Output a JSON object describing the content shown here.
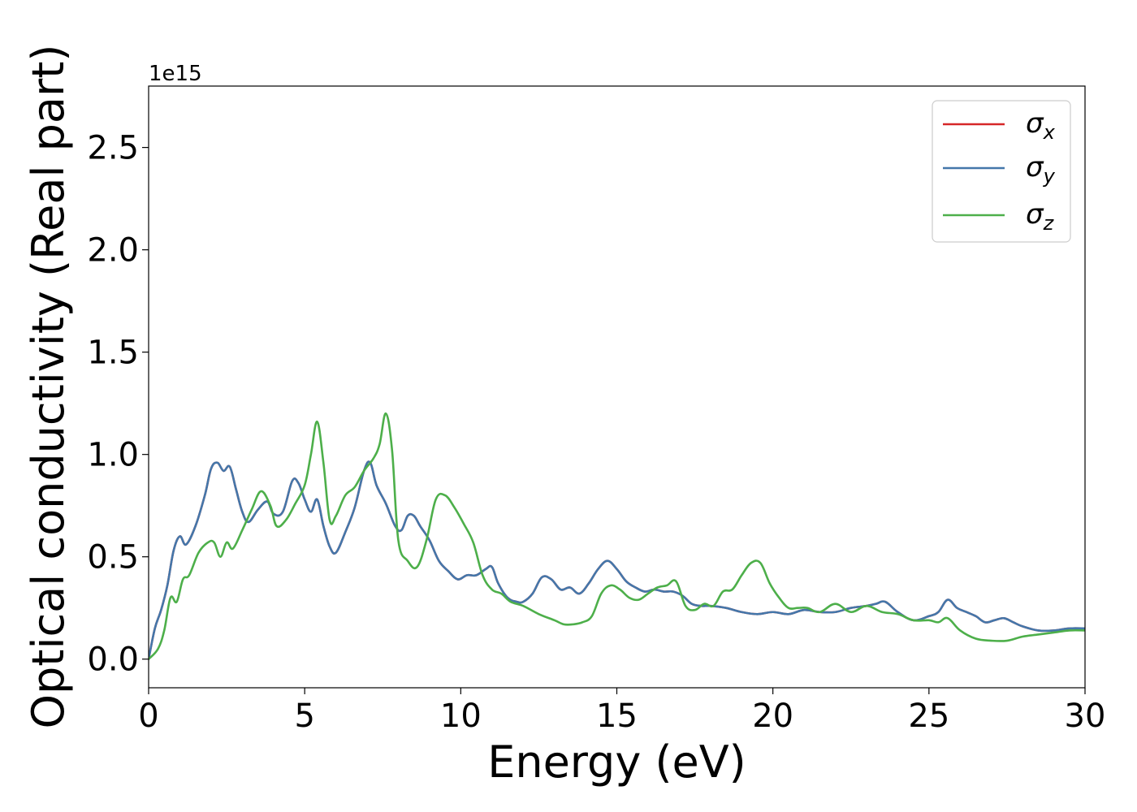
{
  "chart_data": {
    "type": "line",
    "xlabel": "Energy (eV)",
    "ylabel": "Optical conductivity (Real part)",
    "offset_text": "1e15",
    "xlim": [
      0,
      30
    ],
    "ylim": [
      -0.14,
      2.8
    ],
    "xticks": [
      0,
      5,
      10,
      15,
      20,
      25,
      30
    ],
    "xtick_labels": [
      "0",
      "5",
      "10",
      "15",
      "20",
      "25",
      "30"
    ],
    "yticks": [
      0.0,
      0.5,
      1.0,
      1.5,
      2.0,
      2.5
    ],
    "ytick_labels": [
      "0.0",
      "0.5",
      "1.0",
      "1.5",
      "2.0",
      "2.5"
    ],
    "grid": false,
    "legend_position": "top-right",
    "series": [
      {
        "name": "σ_x",
        "label_main": "σ",
        "label_sub": "x",
        "color": "#d62728",
        "x": [
          0,
          0.2,
          0.4,
          0.6,
          0.8,
          1.0,
          1.2,
          1.5,
          1.8,
          2.0,
          2.2,
          2.4,
          2.6,
          2.8,
          3.0,
          3.2,
          3.5,
          3.8,
          4.0,
          4.3,
          4.6,
          4.8,
          5.0,
          5.2,
          5.4,
          5.6,
          5.8,
          6.0,
          6.3,
          6.6,
          6.9,
          7.1,
          7.3,
          7.6,
          7.9,
          8.1,
          8.3,
          8.5,
          8.7,
          9.0,
          9.3,
          9.6,
          9.9,
          10.2,
          10.5,
          10.8,
          11.0,
          11.2,
          11.5,
          11.8,
          12.0,
          12.3,
          12.6,
          12.9,
          13.2,
          13.5,
          13.8,
          14.1,
          14.4,
          14.7,
          15.0,
          15.3,
          15.6,
          15.9,
          16.2,
          16.5,
          16.8,
          17.1,
          17.4,
          17.7,
          18.0,
          18.5,
          19.0,
          19.5,
          20.0,
          20.5,
          21.0,
          21.5,
          22.0,
          22.5,
          23.0,
          23.3,
          23.6,
          24.0,
          24.5,
          25.0,
          25.3,
          25.6,
          25.9,
          26.2,
          26.5,
          26.8,
          27.1,
          27.4,
          27.7,
          28.0,
          28.5,
          29.0,
          29.5,
          30.0
        ],
        "y": [
          0.0,
          0.15,
          0.24,
          0.36,
          0.53,
          0.6,
          0.56,
          0.65,
          0.8,
          0.93,
          0.96,
          0.92,
          0.94,
          0.83,
          0.72,
          0.67,
          0.73,
          0.77,
          0.71,
          0.72,
          0.87,
          0.86,
          0.78,
          0.72,
          0.78,
          0.65,
          0.55,
          0.52,
          0.62,
          0.74,
          0.92,
          0.96,
          0.85,
          0.76,
          0.65,
          0.63,
          0.7,
          0.7,
          0.65,
          0.58,
          0.48,
          0.43,
          0.39,
          0.41,
          0.41,
          0.44,
          0.45,
          0.37,
          0.3,
          0.28,
          0.28,
          0.32,
          0.4,
          0.39,
          0.34,
          0.35,
          0.32,
          0.37,
          0.44,
          0.48,
          0.44,
          0.38,
          0.35,
          0.33,
          0.34,
          0.33,
          0.33,
          0.31,
          0.27,
          0.26,
          0.26,
          0.25,
          0.23,
          0.22,
          0.23,
          0.22,
          0.24,
          0.23,
          0.23,
          0.25,
          0.26,
          0.27,
          0.28,
          0.23,
          0.19,
          0.21,
          0.23,
          0.29,
          0.25,
          0.23,
          0.21,
          0.18,
          0.19,
          0.2,
          0.18,
          0.16,
          0.14,
          0.14,
          0.15,
          0.15
        ]
      },
      {
        "name": "σ_y",
        "label_main": "σ",
        "label_sub": "y",
        "color": "#4477aa",
        "x": [
          0,
          0.2,
          0.4,
          0.6,
          0.8,
          1.0,
          1.2,
          1.5,
          1.8,
          2.0,
          2.2,
          2.4,
          2.6,
          2.8,
          3.0,
          3.2,
          3.5,
          3.8,
          4.0,
          4.3,
          4.6,
          4.8,
          5.0,
          5.2,
          5.4,
          5.6,
          5.8,
          6.0,
          6.3,
          6.6,
          6.9,
          7.1,
          7.3,
          7.6,
          7.9,
          8.1,
          8.3,
          8.5,
          8.7,
          9.0,
          9.3,
          9.6,
          9.9,
          10.2,
          10.5,
          10.8,
          11.0,
          11.2,
          11.5,
          11.8,
          12.0,
          12.3,
          12.6,
          12.9,
          13.2,
          13.5,
          13.8,
          14.1,
          14.4,
          14.7,
          15.0,
          15.3,
          15.6,
          15.9,
          16.2,
          16.5,
          16.8,
          17.1,
          17.4,
          17.7,
          18.0,
          18.5,
          19.0,
          19.5,
          20.0,
          20.5,
          21.0,
          21.5,
          22.0,
          22.5,
          23.0,
          23.3,
          23.6,
          24.0,
          24.5,
          25.0,
          25.3,
          25.6,
          25.9,
          26.2,
          26.5,
          26.8,
          27.1,
          27.4,
          27.7,
          28.0,
          28.5,
          29.0,
          29.5,
          30.0
        ],
        "y": [
          0.0,
          0.15,
          0.24,
          0.36,
          0.53,
          0.6,
          0.56,
          0.65,
          0.8,
          0.93,
          0.96,
          0.92,
          0.94,
          0.83,
          0.72,
          0.67,
          0.73,
          0.77,
          0.71,
          0.72,
          0.87,
          0.86,
          0.78,
          0.72,
          0.78,
          0.65,
          0.55,
          0.52,
          0.62,
          0.74,
          0.92,
          0.96,
          0.85,
          0.76,
          0.65,
          0.63,
          0.7,
          0.7,
          0.65,
          0.58,
          0.48,
          0.43,
          0.39,
          0.41,
          0.41,
          0.44,
          0.45,
          0.37,
          0.3,
          0.28,
          0.28,
          0.32,
          0.4,
          0.39,
          0.34,
          0.35,
          0.32,
          0.37,
          0.44,
          0.48,
          0.44,
          0.38,
          0.35,
          0.33,
          0.34,
          0.33,
          0.33,
          0.31,
          0.27,
          0.26,
          0.26,
          0.25,
          0.23,
          0.22,
          0.23,
          0.22,
          0.24,
          0.23,
          0.23,
          0.25,
          0.26,
          0.27,
          0.28,
          0.23,
          0.19,
          0.21,
          0.23,
          0.29,
          0.25,
          0.23,
          0.21,
          0.18,
          0.19,
          0.2,
          0.18,
          0.16,
          0.14,
          0.14,
          0.15,
          0.15
        ]
      },
      {
        "name": "σ_z",
        "label_main": "σ",
        "label_sub": "z",
        "color": "#4daf4a",
        "x": [
          0,
          0.3,
          0.5,
          0.7,
          0.9,
          1.1,
          1.3,
          1.6,
          1.9,
          2.1,
          2.3,
          2.5,
          2.7,
          3.0,
          3.3,
          3.6,
          3.9,
          4.1,
          4.4,
          4.7,
          5.0,
          5.2,
          5.4,
          5.6,
          5.8,
          6.0,
          6.3,
          6.6,
          6.9,
          7.2,
          7.4,
          7.6,
          7.8,
          8.0,
          8.3,
          8.6,
          8.9,
          9.2,
          9.5,
          9.8,
          10.1,
          10.4,
          10.7,
          11.0,
          11.3,
          11.6,
          12.0,
          12.5,
          13.0,
          13.3,
          13.6,
          13.9,
          14.2,
          14.5,
          14.8,
          15.1,
          15.4,
          15.7,
          16.0,
          16.3,
          16.6,
          16.9,
          17.2,
          17.5,
          17.8,
          18.1,
          18.4,
          18.7,
          19.0,
          19.3,
          19.6,
          19.9,
          20.2,
          20.5,
          20.8,
          21.1,
          21.5,
          22.0,
          22.5,
          23.0,
          23.5,
          24.0,
          24.5,
          25.0,
          25.3,
          25.6,
          26.0,
          26.5,
          27.0,
          27.5,
          28.0,
          28.5,
          29.0,
          29.5,
          30.0
        ],
        "y": [
          0.0,
          0.05,
          0.14,
          0.3,
          0.28,
          0.39,
          0.41,
          0.52,
          0.57,
          0.57,
          0.5,
          0.57,
          0.54,
          0.63,
          0.73,
          0.82,
          0.75,
          0.65,
          0.68,
          0.76,
          0.85,
          1.0,
          1.16,
          0.96,
          0.68,
          0.7,
          0.8,
          0.84,
          0.92,
          0.98,
          1.05,
          1.2,
          1.02,
          0.58,
          0.48,
          0.45,
          0.58,
          0.78,
          0.8,
          0.74,
          0.66,
          0.57,
          0.41,
          0.34,
          0.32,
          0.28,
          0.26,
          0.22,
          0.19,
          0.17,
          0.17,
          0.18,
          0.21,
          0.32,
          0.36,
          0.34,
          0.3,
          0.29,
          0.32,
          0.35,
          0.36,
          0.38,
          0.26,
          0.24,
          0.27,
          0.26,
          0.33,
          0.34,
          0.41,
          0.47,
          0.47,
          0.37,
          0.3,
          0.25,
          0.25,
          0.25,
          0.23,
          0.27,
          0.23,
          0.26,
          0.23,
          0.22,
          0.19,
          0.19,
          0.18,
          0.2,
          0.14,
          0.1,
          0.09,
          0.09,
          0.11,
          0.12,
          0.13,
          0.14,
          0.14
        ]
      }
    ]
  }
}
